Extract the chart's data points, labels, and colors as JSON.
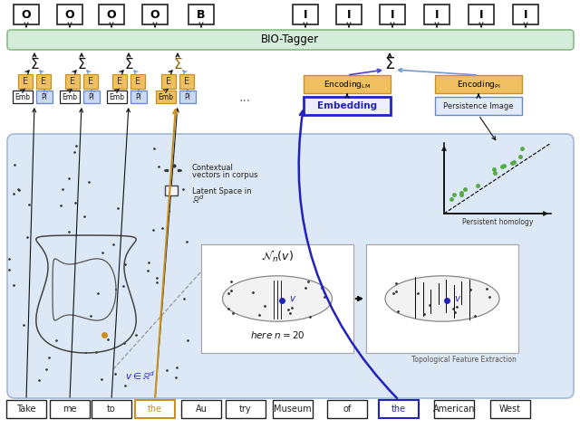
{
  "bio_tags": [
    "O",
    "O",
    "O",
    "O",
    "B",
    "I",
    "I",
    "I",
    "I",
    "I",
    "I"
  ],
  "words": [
    "Take",
    "me",
    "to",
    "the",
    "Au",
    "try",
    "Museum",
    "of",
    "the",
    "American",
    "West"
  ],
  "green_box_color": "#d4edda",
  "green_box_edge": "#88bb88",
  "blue_bg_color": "#dce8f5",
  "blue_bg_edge": "#a0b8d8",
  "yellow_box_color": "#f0c060",
  "yellow_box_edge": "#c89020",
  "blue_emb_color": "#c8d8f0",
  "blue_emb_edge": "#6688cc",
  "arrow_blue": "#4444cc",
  "arrow_gold": "#c89020",
  "arrow_lightblue": "#7799cc"
}
